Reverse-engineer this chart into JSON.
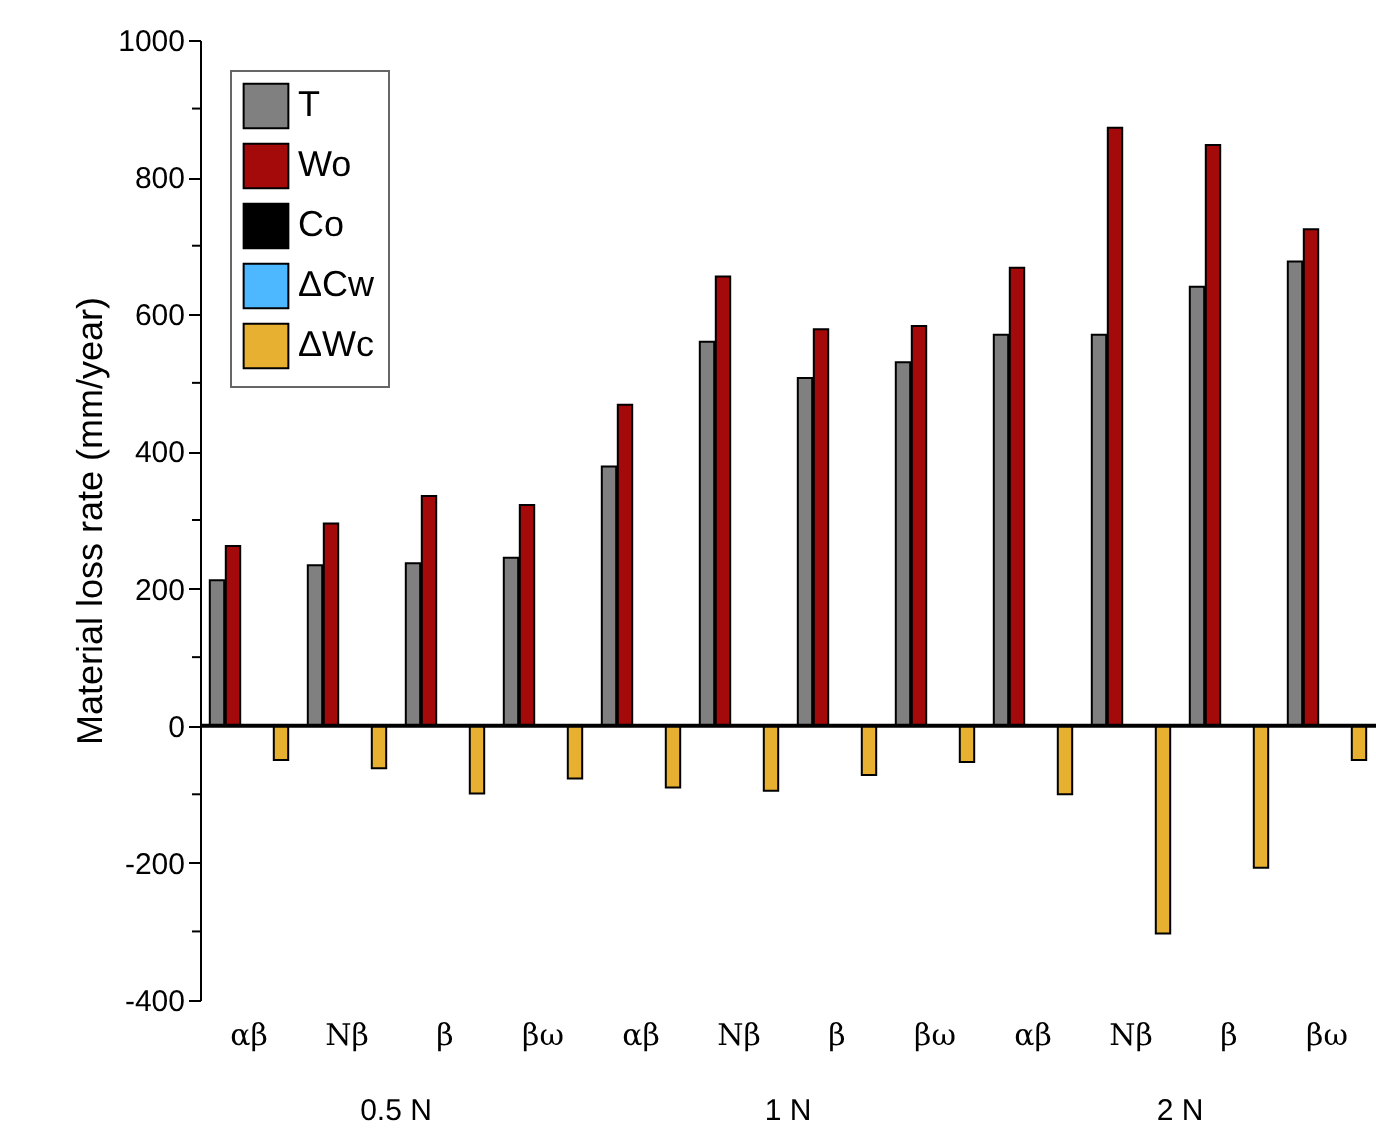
{
  "chart_data": {
    "type": "bar",
    "ylabel": "Material loss rate (mm/year)",
    "categories": [
      "αβ",
      "Nβ",
      "β",
      "βω",
      "αβ",
      "Nβ",
      "β",
      "βω",
      "αβ",
      "Nβ",
      "β",
      "βω"
    ],
    "series": [
      {
        "name": "T",
        "color": "#808080",
        "values": [
          212,
          234,
          237,
          245,
          378,
          560,
          507,
          530,
          570,
          570,
          640,
          677
        ]
      },
      {
        "name": "Wo",
        "color": "#a50a0a",
        "values": [
          262,
          295,
          335,
          322,
          468,
          655,
          578,
          583,
          668,
          872,
          847,
          724
        ]
      },
      {
        "name": "Co",
        "color": "#000000",
        "values": [
          null,
          null,
          null,
          null,
          null,
          null,
          null,
          null,
          null,
          null,
          null,
          null
        ]
      },
      {
        "name": "ΔCw",
        "color": "#4db8ff",
        "values": [
          null,
          null,
          null,
          null,
          null,
          null,
          null,
          null,
          null,
          null,
          null,
          null
        ]
      },
      {
        "name": "ΔWc",
        "color": "#e8b030",
        "values": [
          -50,
          -62,
          -99,
          -77,
          -90,
          -95,
          -72,
          -53,
          -100,
          -303,
          -207,
          -50
        ]
      }
    ],
    "ylim": [
      -400,
      1000
    ],
    "yticks": [
      -400,
      {
        "value": -300,
        "label": null
      },
      -200,
      {
        "value": -100,
        "label": null
      },
      0,
      {
        "value": 100,
        "label": null
      },
      200,
      {
        "value": 300,
        "label": null
      },
      400,
      {
        "value": 500,
        "label": null
      },
      600,
      {
        "value": 700,
        "label": null
      },
      800,
      {
        "value": 900,
        "label": null
      },
      1000
    ],
    "annotations": [
      "0.5 N",
      "1 N",
      "2 N"
    ],
    "ref_lines": [
      {
        "axis": "y",
        "value": 0,
        "color": "#000000"
      }
    ],
    "legend": "top left",
    "grid": false
  }
}
